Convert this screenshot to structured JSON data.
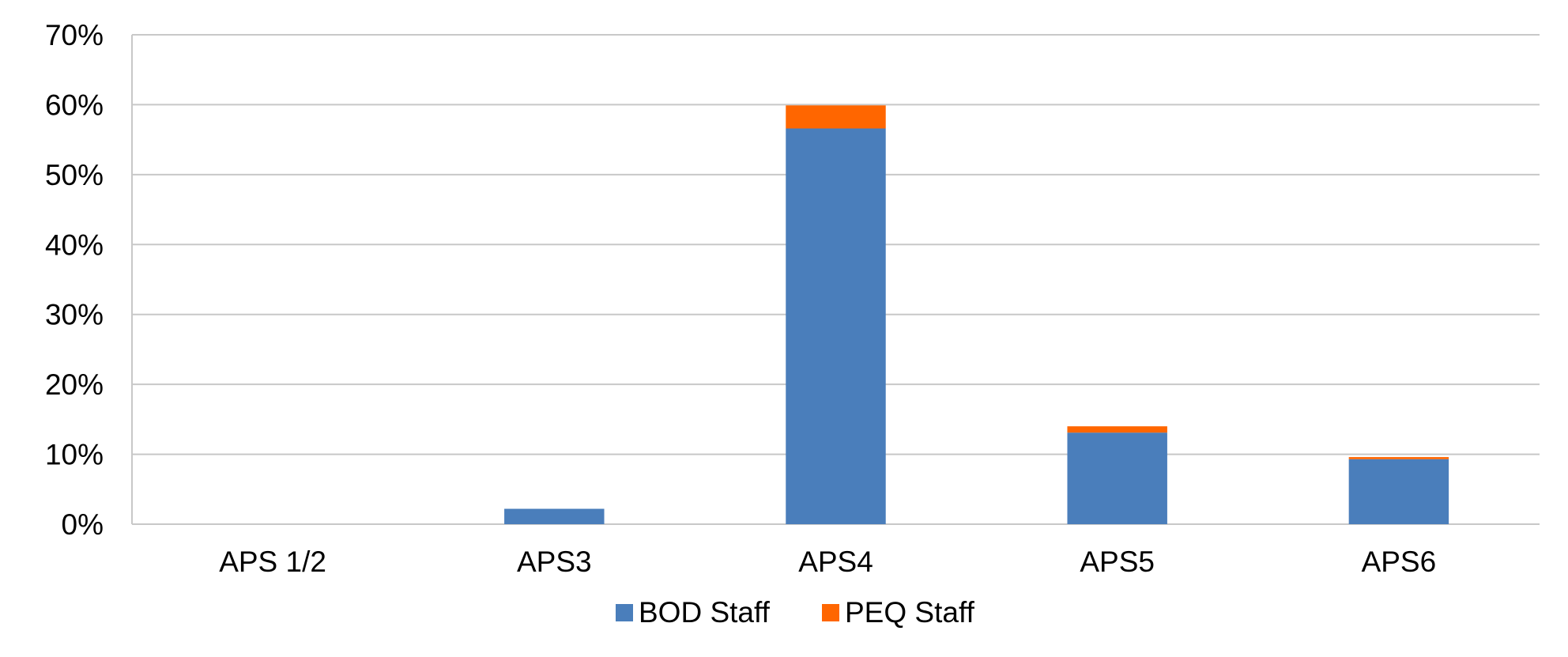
{
  "chart_data": {
    "type": "bar",
    "stacked": true,
    "title": "",
    "xlabel": "",
    "ylabel": "",
    "categories": [
      "APS 1/2",
      "APS3",
      "APS4",
      "APS5",
      "APS6"
    ],
    "series": [
      {
        "name": "BOD Staff",
        "color": "#4A7EBB",
        "values": [
          0,
          2.2,
          56.6,
          13.1,
          9.3
        ]
      },
      {
        "name": "PEQ Staff",
        "color": "#FF6600",
        "values": [
          0,
          0,
          3.3,
          0.9,
          0.3
        ]
      }
    ],
    "ylim": [
      0,
      70
    ],
    "yticks": [
      "0%",
      "10%",
      "20%",
      "30%",
      "40%",
      "50%",
      "60%",
      "70%"
    ],
    "ytick_values": [
      0,
      10,
      20,
      30,
      40,
      50,
      60,
      70
    ],
    "grid": true,
    "legend": "bottom"
  }
}
